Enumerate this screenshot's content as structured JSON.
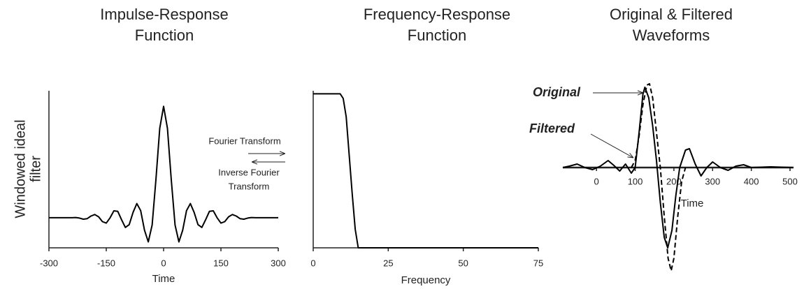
{
  "chart_data": [
    {
      "type": "line",
      "title": [
        "Impulse-Response",
        "Function"
      ],
      "xlabel": "Time",
      "ylabel": [
        "Windowed ideal",
        "filter"
      ],
      "x": [
        -300,
        -250,
        -240,
        -230,
        -220,
        -210,
        -200,
        -190,
        -180,
        -170,
        -160,
        -150,
        -140,
        -130,
        -120,
        -110,
        -100,
        -90,
        -80,
        -70,
        -60,
        -50,
        -40,
        -30,
        -20,
        -10,
        0,
        10,
        20,
        30,
        40,
        50,
        60,
        70,
        80,
        90,
        100,
        110,
        120,
        130,
        140,
        150,
        160,
        170,
        180,
        190,
        200,
        210,
        220,
        230,
        240,
        250,
        300
      ],
      "values": [
        0,
        0,
        0,
        0.002,
        -0.003,
        -0.013,
        -0.008,
        0.015,
        0.029,
        0.008,
        -0.035,
        -0.048,
        0,
        0.062,
        0.058,
        -0.018,
        -0.087,
        -0.062,
        0.048,
        0.127,
        0.064,
        -0.112,
        -0.217,
        -0.066,
        0.348,
        0.803,
        1,
        0.803,
        0.348,
        -0.066,
        -0.217,
        -0.112,
        0.064,
        0.127,
        0.048,
        -0.062,
        -0.087,
        -0.018,
        0.058,
        0.062,
        0,
        -0.048,
        -0.035,
        0.008,
        0.029,
        0.015,
        -0.008,
        -0.013,
        -0.003,
        0.002,
        0,
        0,
        0
      ],
      "color": "#000000",
      "xlim": [
        -300,
        300
      ],
      "xticks": [
        -300,
        -150,
        0,
        150,
        300
      ],
      "ylim": [
        -0.27,
        1.14
      ]
    },
    {
      "type": "line",
      "title": [
        "Frequency-Response",
        "Function"
      ],
      "xlabel": "Frequency",
      "x": [
        0,
        9,
        10,
        11,
        12,
        13,
        14,
        15,
        75
      ],
      "values": [
        1,
        1,
        0.97,
        0.85,
        0.6,
        0.35,
        0.12,
        0,
        0
      ],
      "color": "#000000",
      "xlim": [
        0,
        75
      ],
      "xticks": [
        0,
        25,
        50,
        75
      ],
      "ylim": [
        0,
        1.02
      ]
    },
    {
      "type": "line",
      "title": [
        "Original & Filtered",
        "Waveforms"
      ],
      "xlabel": "Time",
      "xlim": [
        -87,
        509
      ],
      "xticks": [
        0,
        100,
        200,
        300,
        400,
        500
      ],
      "ylim": [
        -1.5,
        1.3
      ],
      "series": [
        {
          "name": "Original",
          "color": "#000000",
          "style": "dashed",
          "x": [
            90,
            100,
            110,
            120,
            130,
            137,
            145,
            155,
            165,
            175,
            185,
            193,
            200,
            210,
            220,
            230
          ],
          "values": [
            0,
            0.1,
            0.45,
            0.9,
            1.18,
            1.2,
            1.0,
            0.5,
            0,
            -0.7,
            -1.3,
            -1.48,
            -1.3,
            -0.7,
            -0.2,
            0
          ]
        },
        {
          "name": "Filtered",
          "color": "#000000",
          "style": "solid",
          "x": [
            -87,
            -70,
            -50,
            -30,
            -10,
            10,
            30,
            45,
            60,
            75,
            90,
            100,
            110,
            120,
            125,
            135,
            145,
            155,
            165,
            175,
            184,
            195,
            205,
            215,
            230,
            240,
            255,
            270,
            285,
            300,
            320,
            340,
            360,
            380,
            400,
            450,
            509
          ],
          "values": [
            0,
            0.02,
            0.05,
            0,
            -0.03,
            0.02,
            0.1,
            0.03,
            -0.05,
            0.05,
            -0.08,
            0,
            0.5,
            1.05,
            1.15,
            1.0,
            0.6,
            0.1,
            -0.5,
            -1.0,
            -1.15,
            -0.9,
            -0.4,
            0,
            0.25,
            0.27,
            0.05,
            -0.12,
            0,
            0.08,
            0,
            -0.04,
            0.02,
            0.04,
            0,
            0.01,
            0
          ]
        }
      ]
    }
  ],
  "transform_labels": {
    "forward": "Fourier Transform",
    "inverse": [
      "Inverse Fourier",
      "Transform"
    ]
  }
}
